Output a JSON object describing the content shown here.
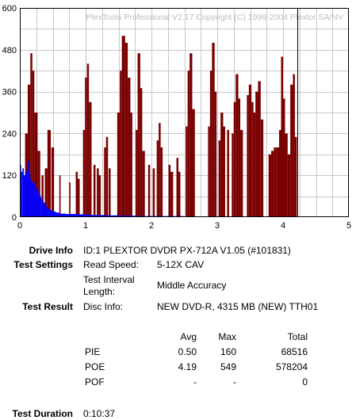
{
  "chart_data": {
    "type": "bar",
    "watermark": "PlexTools Professional V2.17 Copyright (C) 1999-2004 Plextor SA/NV",
    "xlim": [
      0,
      5
    ],
    "ylim": [
      0,
      600
    ],
    "xticks": [
      "0",
      "1",
      "2",
      "3",
      "4",
      "5"
    ],
    "yticks": [
      "0",
      "120",
      "240",
      "360",
      "480",
      "600"
    ],
    "grid": true,
    "x_end_marker": 4.22,
    "series": [
      {
        "color": "#7a0000",
        "segments": [
          [
            0.08,
            0.12,
            240
          ],
          [
            0.12,
            0.16,
            380
          ],
          [
            0.16,
            0.19,
            470
          ],
          [
            0.19,
            0.22,
            420
          ],
          [
            0.22,
            0.27,
            300
          ],
          [
            0.27,
            0.31,
            190
          ],
          [
            0.33,
            0.36,
            120
          ],
          [
            0.38,
            0.42,
            140
          ],
          [
            0.42,
            0.47,
            250
          ],
          [
            0.48,
            0.52,
            200
          ],
          [
            0.6,
            0.62,
            120
          ],
          [
            0.75,
            0.77,
            100
          ],
          [
            0.85,
            0.88,
            130
          ],
          [
            0.88,
            0.91,
            110
          ],
          [
            0.96,
            0.99,
            250
          ],
          [
            0.99,
            1.02,
            400
          ],
          [
            1.02,
            1.05,
            440
          ],
          [
            1.05,
            1.09,
            330
          ],
          [
            1.12,
            1.15,
            150
          ],
          [
            1.17,
            1.2,
            140
          ],
          [
            1.2,
            1.23,
            120
          ],
          [
            1.28,
            1.31,
            200
          ],
          [
            1.31,
            1.34,
            230
          ],
          [
            1.35,
            1.38,
            140
          ],
          [
            1.48,
            1.52,
            300
          ],
          [
            1.52,
            1.55,
            420
          ],
          [
            1.55,
            1.6,
            520
          ],
          [
            1.6,
            1.64,
            500
          ],
          [
            1.64,
            1.68,
            400
          ],
          [
            1.68,
            1.71,
            300
          ],
          [
            1.76,
            1.79,
            250
          ],
          [
            1.79,
            1.83,
            470
          ],
          [
            1.83,
            1.86,
            370
          ],
          [
            1.86,
            1.9,
            190
          ],
          [
            1.95,
            1.98,
            150
          ],
          [
            2.02,
            2.05,
            140
          ],
          [
            2.08,
            2.11,
            220
          ],
          [
            2.11,
            2.14,
            270
          ],
          [
            2.14,
            2.17,
            200
          ],
          [
            2.26,
            2.29,
            150
          ],
          [
            2.29,
            2.33,
            130
          ],
          [
            2.38,
            2.41,
            170
          ],
          [
            2.41,
            2.44,
            130
          ],
          [
            2.52,
            2.55,
            260
          ],
          [
            2.55,
            2.58,
            420
          ],
          [
            2.58,
            2.62,
            470
          ],
          [
            2.62,
            2.66,
            310
          ],
          [
            2.86,
            2.89,
            260
          ],
          [
            2.89,
            2.92,
            420
          ],
          [
            2.92,
            2.96,
            500
          ],
          [
            2.96,
            2.99,
            360
          ],
          [
            3.02,
            3.05,
            220
          ],
          [
            3.05,
            3.09,
            300
          ],
          [
            3.09,
            3.12,
            260
          ],
          [
            3.15,
            3.18,
            250
          ],
          [
            3.22,
            3.25,
            240
          ],
          [
            3.25,
            3.28,
            330
          ],
          [
            3.28,
            3.32,
            410
          ],
          [
            3.32,
            3.35,
            340
          ],
          [
            3.35,
            3.39,
            250
          ],
          [
            3.45,
            3.48,
            350
          ],
          [
            3.48,
            3.52,
            380
          ],
          [
            3.52,
            3.55,
            330
          ],
          [
            3.55,
            3.58,
            300
          ],
          [
            3.58,
            3.62,
            360
          ],
          [
            3.62,
            3.66,
            390
          ],
          [
            3.66,
            3.7,
            280
          ],
          [
            3.78,
            3.82,
            180
          ],
          [
            3.82,
            3.86,
            190
          ],
          [
            3.86,
            3.9,
            200
          ],
          [
            3.9,
            3.94,
            200
          ],
          [
            3.94,
            3.97,
            250
          ],
          [
            3.97,
            4.0,
            460
          ],
          [
            4.0,
            4.03,
            340
          ],
          [
            4.03,
            4.07,
            240
          ],
          [
            4.07,
            4.11,
            180
          ],
          [
            4.11,
            4.15,
            380
          ],
          [
            4.15,
            4.18,
            410
          ],
          [
            4.18,
            4.21,
            230
          ]
        ]
      },
      {
        "color": "#0000ff",
        "segments": [
          [
            0.0,
            0.02,
            150
          ],
          [
            0.02,
            0.04,
            130
          ],
          [
            0.04,
            0.06,
            140
          ],
          [
            0.06,
            0.08,
            120
          ],
          [
            0.08,
            0.1,
            130
          ],
          [
            0.1,
            0.12,
            135
          ],
          [
            0.12,
            0.14,
            160
          ],
          [
            0.14,
            0.16,
            125
          ],
          [
            0.16,
            0.18,
            110
          ],
          [
            0.18,
            0.2,
            100
          ],
          [
            0.2,
            0.22,
            105
          ],
          [
            0.22,
            0.24,
            95
          ],
          [
            0.24,
            0.26,
            85
          ],
          [
            0.26,
            0.28,
            80
          ],
          [
            0.28,
            0.3,
            70
          ],
          [
            0.3,
            0.32,
            62
          ],
          [
            0.32,
            0.34,
            55
          ],
          [
            0.34,
            0.36,
            48
          ],
          [
            0.36,
            0.38,
            42
          ],
          [
            0.38,
            0.4,
            36
          ],
          [
            0.4,
            0.42,
            30
          ],
          [
            0.42,
            0.45,
            25
          ],
          [
            0.45,
            0.5,
            20
          ],
          [
            0.5,
            0.55,
            16
          ],
          [
            0.55,
            0.6,
            13
          ],
          [
            0.6,
            0.7,
            10
          ],
          [
            0.7,
            0.8,
            9
          ],
          [
            0.8,
            0.9,
            9
          ],
          [
            0.9,
            1.0,
            8
          ],
          [
            1.0,
            1.1,
            7
          ],
          [
            1.1,
            1.2,
            6
          ],
          [
            1.2,
            1.3,
            6
          ],
          [
            1.3,
            1.4,
            5
          ],
          [
            1.4,
            1.5,
            5
          ],
          [
            1.5,
            1.6,
            4
          ],
          [
            1.6,
            1.8,
            4
          ],
          [
            1.8,
            2.0,
            3
          ],
          [
            2.0,
            2.5,
            3
          ],
          [
            2.5,
            3.0,
            2
          ],
          [
            3.0,
            3.5,
            2
          ],
          [
            3.5,
            4.0,
            2
          ],
          [
            4.0,
            4.22,
            2
          ]
        ]
      }
    ]
  },
  "info": {
    "drive_info_label": "Drive Info",
    "drive_info_value": "ID:1 PLEXTOR DVDR PX-712A V1.05 (#101831)",
    "test_settings_label": "Test Settings",
    "read_speed_label": "Read Speed:",
    "read_speed_value": "5-12X CAV",
    "interval_label_1": "Test Interval",
    "interval_label_2": "Length:",
    "interval_value": "Middle Accuracy",
    "test_result_label": "Test Result",
    "disc_info_label": "Disc Info:",
    "disc_info_value": "NEW DVD-R, 4315 MB (NEW) TTH01",
    "test_duration_label": "Test Duration",
    "test_duration_value": "0:10:37"
  },
  "stats": {
    "headers": [
      "Avg",
      "Max",
      "Total"
    ],
    "rows": [
      {
        "name": "PIE",
        "avg": "0.50",
        "max": "160",
        "total": "68516"
      },
      {
        "name": "POE",
        "avg": "4.19",
        "max": "549",
        "total": "578204"
      },
      {
        "name": "POF",
        "avg": "-",
        "max": "-",
        "total": "0"
      }
    ]
  }
}
